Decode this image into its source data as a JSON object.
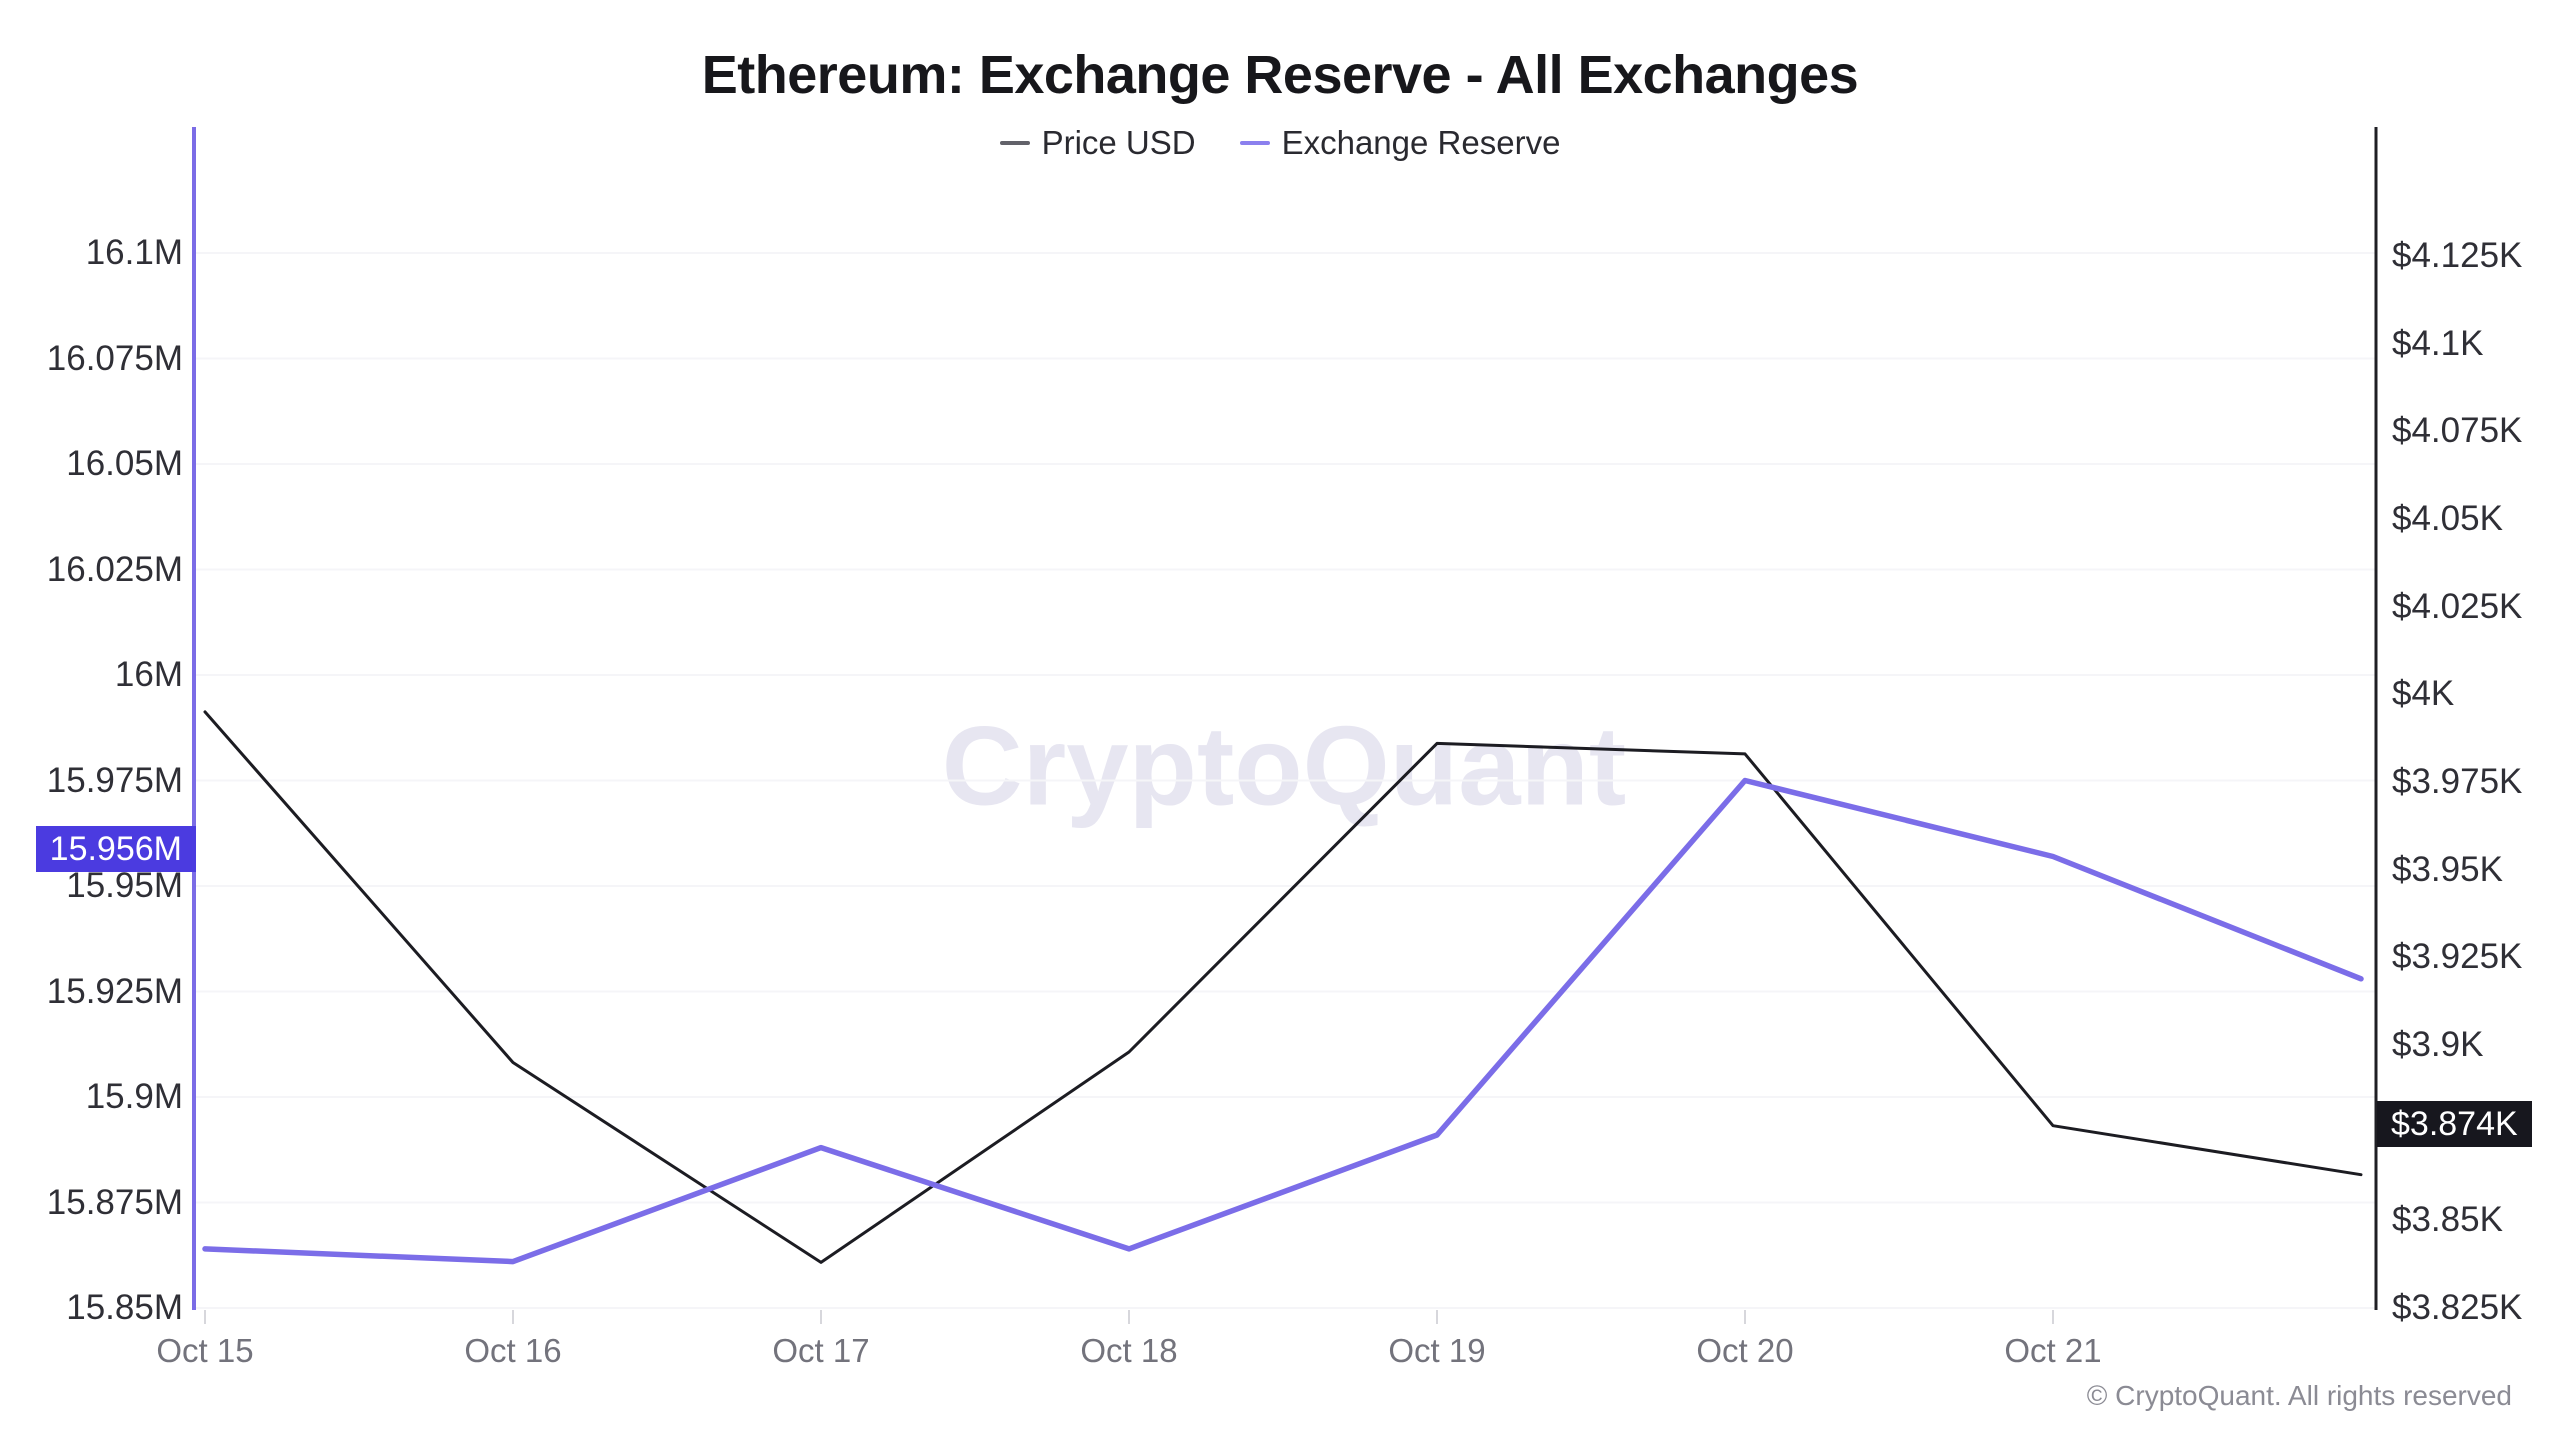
{
  "title": "Ethereum: Exchange Reserve - All Exchanges",
  "legend": [
    {
      "label": "Price USD",
      "dash_color": "#62626a"
    },
    {
      "label": "Exchange Reserve",
      "dash_color": "#8b80ee"
    }
  ],
  "watermark": "CryptoQuant",
  "footer": {
    "copyright": "© CryptoQuant. All rights reserved"
  },
  "badges": {
    "reserve": {
      "text": "15.956M",
      "value": 15.956,
      "bg": "#4b3be0",
      "text_color": "#ffffff"
    },
    "price": {
      "text": "$3.874K",
      "value": 3.874,
      "bg": "#17171e",
      "text_color": "#ffffff"
    }
  },
  "chart_data": {
    "type": "line",
    "x_labels": [
      "Oct 15",
      "Oct 16",
      "Oct 17",
      "Oct 18",
      "Oct 19",
      "Oct 20",
      "Oct 21"
    ],
    "note": "series contain one extra trailing point beyond the last x label (partial next day at plot right edge)",
    "series": [
      {
        "name": "Price USD",
        "axis": "right",
        "color": "#1c1c22",
        "stroke_width": 3,
        "values": [
          3.995,
          3.895,
          3.838,
          3.898,
          3.986,
          3.983,
          3.877,
          3.863
        ]
      },
      {
        "name": "Exchange Reserve",
        "axis": "left",
        "color": "#7b6de8",
        "stroke_width": 5.5,
        "values": [
          15.864,
          15.861,
          15.888,
          15.864,
          15.891,
          15.975,
          15.957,
          15.928
        ]
      }
    ],
    "axes": {
      "left": {
        "title": "Exchange Reserve",
        "unit": "M",
        "axis_color": "#7b6ce6",
        "tick_min": 15.85,
        "tick_max": 16.1,
        "ticks": [
          16.1,
          16.075,
          16.05,
          16.025,
          16.0,
          15.975,
          15.95,
          15.925,
          15.9,
          15.875,
          15.85
        ]
      },
      "right": {
        "title": "Price USD",
        "unit": "K",
        "prefix": "$",
        "axis_color": "#1f1f24",
        "tick_min": 3.825,
        "tick_max": 4.125,
        "ticks": [
          4.125,
          4.1,
          4.075,
          4.05,
          4.025,
          4.0,
          3.975,
          3.95,
          3.925,
          3.9,
          3.875,
          3.85,
          3.825
        ]
      }
    },
    "grid": true,
    "grid_color": "#f5f5f8",
    "tick_mark_color": "#d7d7dc",
    "legend_position": "top"
  }
}
